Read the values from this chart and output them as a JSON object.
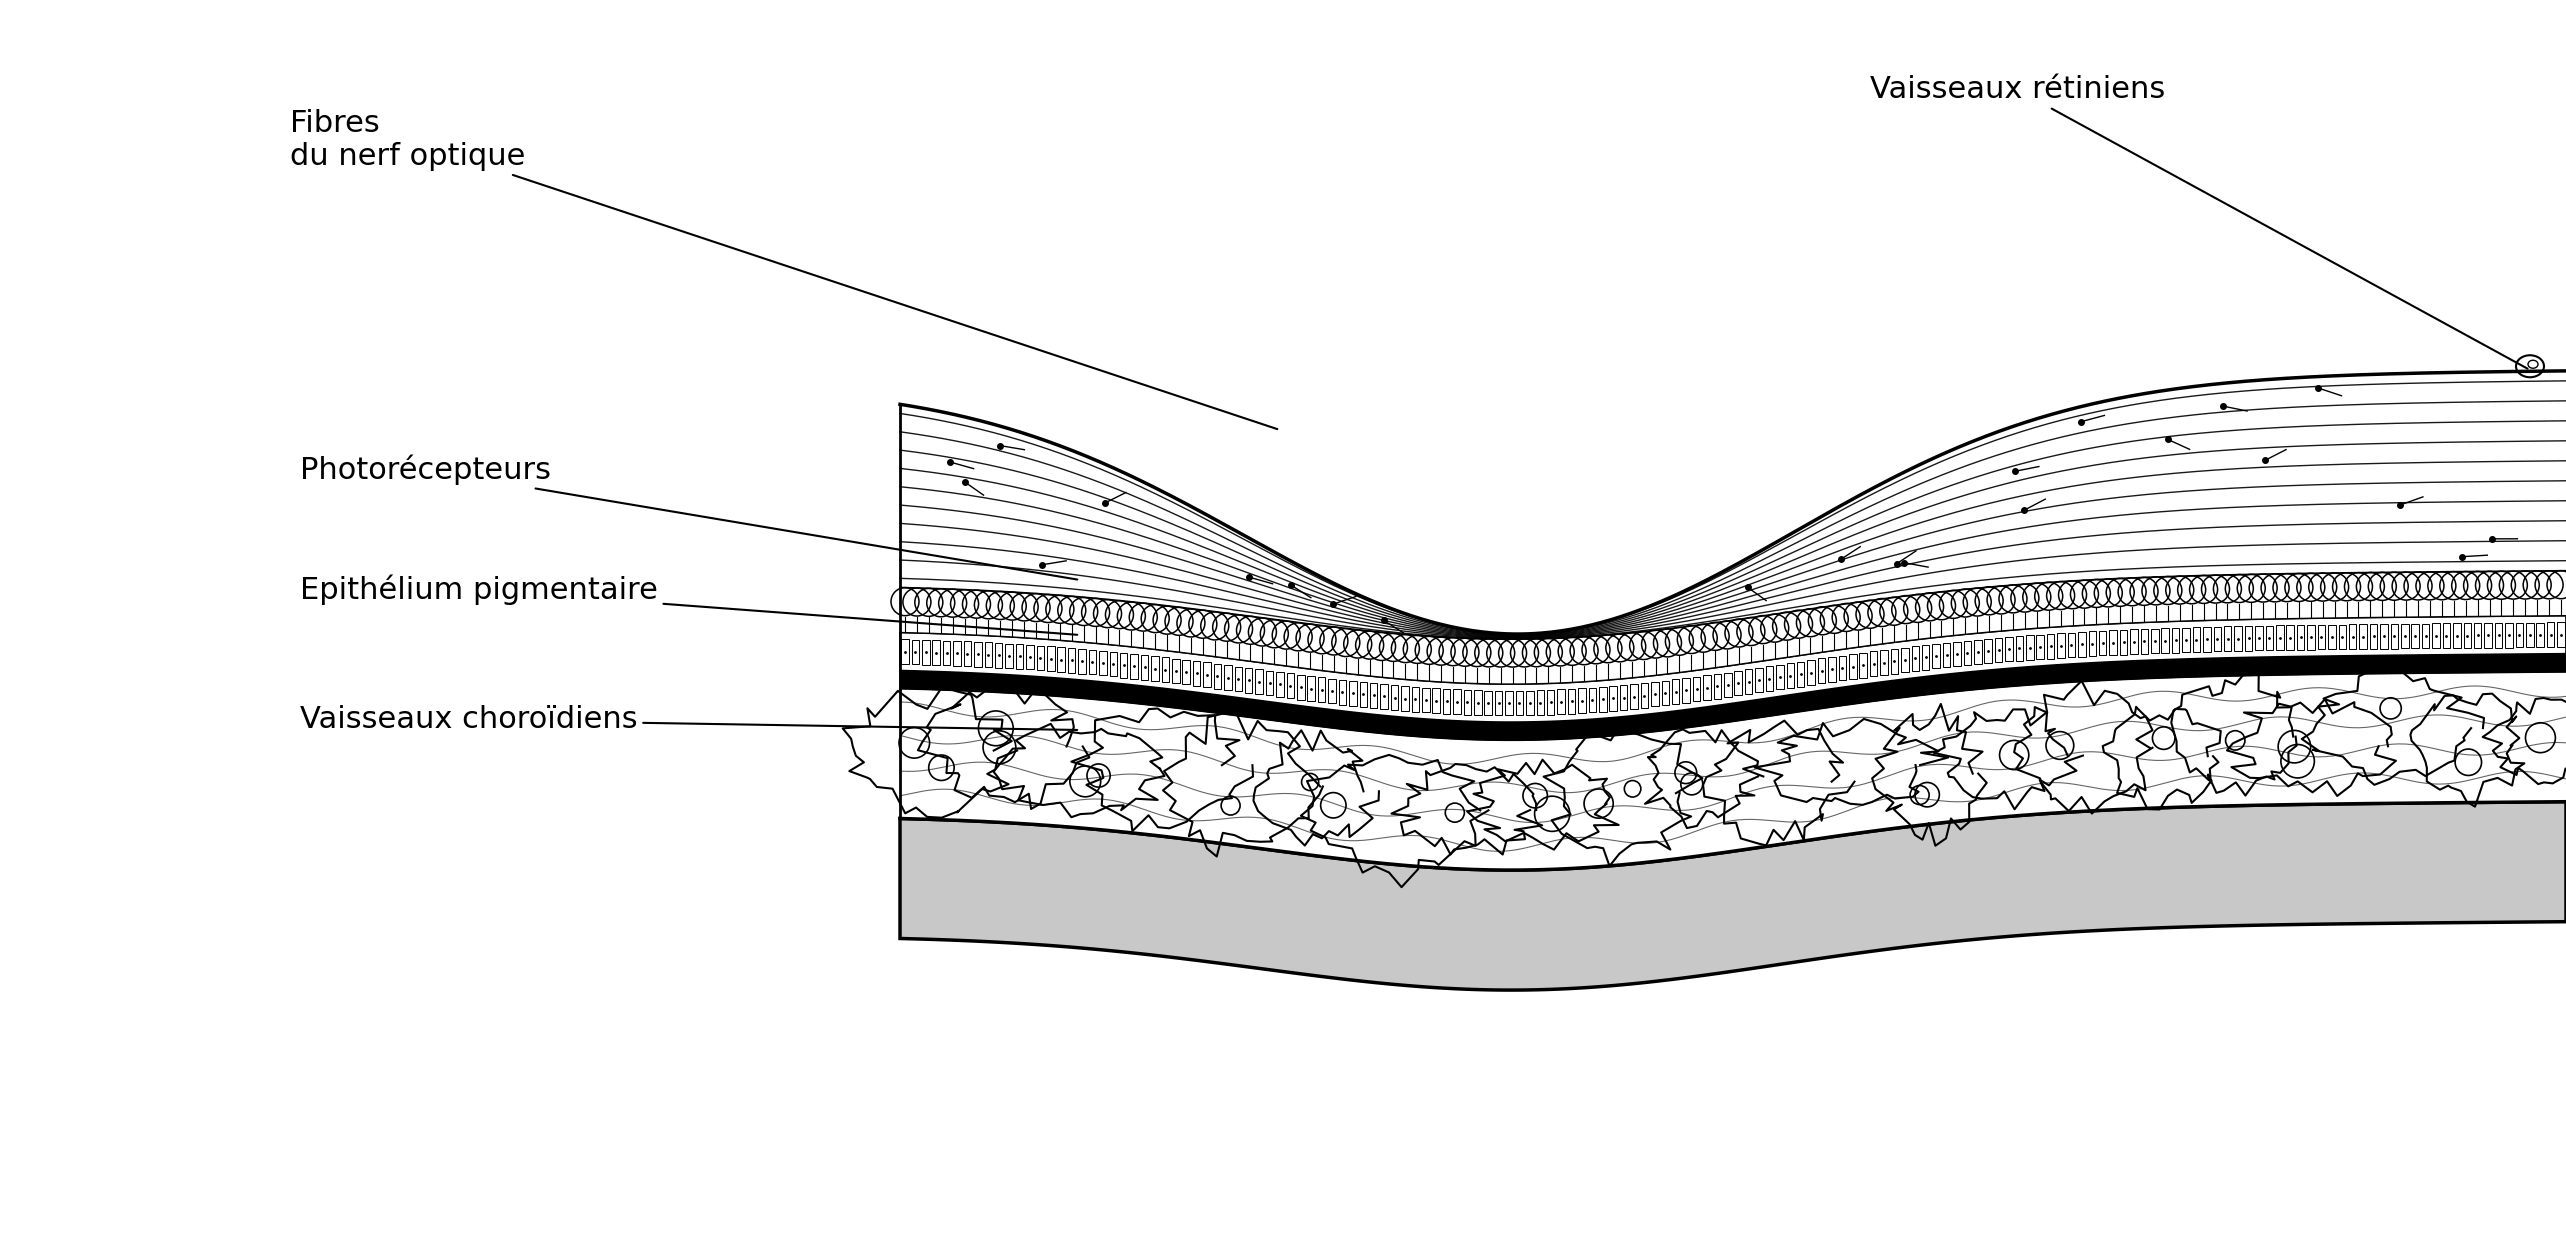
{
  "bg_color": "#ffffff",
  "line_color": "#000000",
  "gray_color": "#c8c8c8",
  "labels": {
    "fibres": "Fibres\ndu nerf optique",
    "vaisseaux_ret": "Vaisseaux rétiniens",
    "photorecepteurs": "Photorécepteurs",
    "epithelium": "Epithélium pigmentaire",
    "vaisseaux_cho": "Vaisseaux choroïdiens"
  },
  "fontsize": 22,
  "figsize": [
    25.66,
    12.39
  ],
  "dpi": 100
}
